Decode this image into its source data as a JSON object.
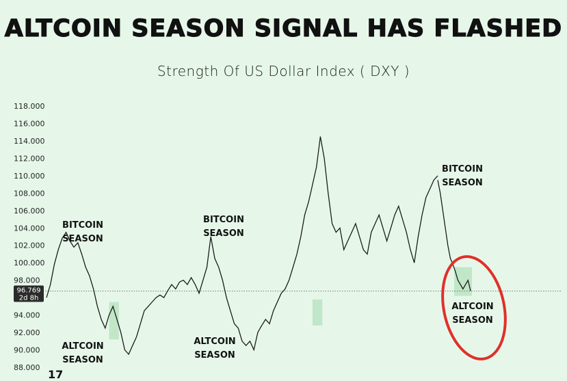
{
  "headline": "ALTCOIN SEASON SIGNAL HAS FLASHED",
  "subtitle": "Strength Of US Dollar Index ( DXY )",
  "logo_icon": "tradingview-logo-icon",
  "colors": {
    "background": "#e6f7ea",
    "line": "#1b1b1b",
    "highlight_box": "#b9e2bf",
    "circle": "#e0302a",
    "price_box": "#2b2b2b"
  },
  "chart_data": {
    "type": "line",
    "title": "Strength Of US Dollar Index ( DXY )",
    "ylim": [
      88,
      118
    ],
    "y_ticks": [
      "118.000",
      "116.000",
      "114.000",
      "112.000",
      "110.000",
      "108.000",
      "106.000",
      "104.000",
      "102.000",
      "100.000",
      "98.000",
      "96.000",
      "94.000",
      "92.000",
      "90.000",
      "88.000"
    ],
    "current_price": {
      "value": "96.769",
      "countdown": "2d 8h",
      "level": 96.769
    },
    "x_index": [
      0,
      2,
      4,
      6,
      8,
      10,
      12,
      14,
      16,
      18,
      20,
      22,
      24,
      26,
      28,
      30,
      32,
      34,
      36,
      38,
      40,
      42,
      44,
      46,
      48,
      50,
      52,
      54,
      56,
      58,
      60,
      62,
      64,
      66,
      68,
      70,
      72,
      74,
      76,
      78,
      80,
      82,
      84,
      86,
      88,
      90,
      92,
      94,
      96,
      98,
      100,
      102,
      104,
      106,
      108,
      110,
      112,
      114,
      116,
      118,
      120,
      122,
      124,
      126,
      128,
      130,
      132,
      134,
      136,
      138,
      140,
      142,
      144,
      146,
      148,
      150,
      152,
      154,
      156,
      158,
      160,
      162,
      164,
      166,
      168,
      170,
      172,
      174,
      176,
      178,
      180,
      182,
      184,
      186,
      188,
      190,
      192,
      194,
      196,
      198,
      200
    ],
    "series": [
      {
        "values": [
          96.0,
          97.5,
          99.8,
          101.5,
          102.8,
          103.5,
          102.5,
          101.8,
          102.3,
          101.0,
          99.5,
          98.5,
          97.0,
          95.0,
          93.5,
          92.5,
          94.0,
          95.0,
          93.5,
          92.0,
          90.0,
          89.5,
          90.5,
          91.5,
          93.0,
          94.5,
          95.0,
          95.5,
          96.0,
          96.3,
          96.0,
          96.8,
          97.5,
          97.0,
          97.8,
          98.0,
          97.5,
          98.3,
          97.5,
          96.5,
          98.0,
          99.5,
          103.0,
          100.5,
          99.5,
          98.0,
          96.0,
          94.5,
          93.0,
          92.5,
          91.0,
          90.5,
          91.0,
          90.0,
          92.0,
          92.8,
          93.5,
          93.0,
          94.5,
          95.5,
          96.5,
          97.0,
          98.0,
          99.5,
          101.0,
          103.0,
          105.5,
          107.0,
          109.0,
          111.0,
          114.5,
          112.0,
          108.0,
          104.5,
          103.5,
          104.0,
          101.5,
          102.5,
          103.5,
          104.5,
          103.0,
          101.5,
          101.0,
          103.5,
          104.5,
          105.5,
          104.0,
          102.5,
          104.0,
          105.5,
          106.5,
          105.0,
          103.5,
          101.5,
          100.0,
          103.0,
          105.5,
          107.5,
          108.5,
          109.5,
          110.0
        ]
      },
      {
        "values": [
          109.5,
          108.0,
          106.0,
          104.0,
          102.0,
          100.5,
          99.8,
          99.0,
          98.0,
          97.5,
          97.0,
          97.5,
          98.0,
          96.769
        ]
      }
    ],
    "annotations": [
      {
        "label_line1": "BITCOIN",
        "label_line2": "SEASON"
      },
      {
        "label_line1": "ALTCOIN",
        "label_line2": "SEASON"
      },
      {
        "label_line1": "BITCOIN",
        "label_line2": "SEASON"
      },
      {
        "label_line1": "ALTCOIN",
        "label_line2": "SEASON"
      },
      {
        "label_line1": "BITCOIN",
        "label_line2": "SEASON"
      },
      {
        "label_line1": "ALTCOIN",
        "label_line2": "SEASON"
      }
    ],
    "grid": false
  }
}
